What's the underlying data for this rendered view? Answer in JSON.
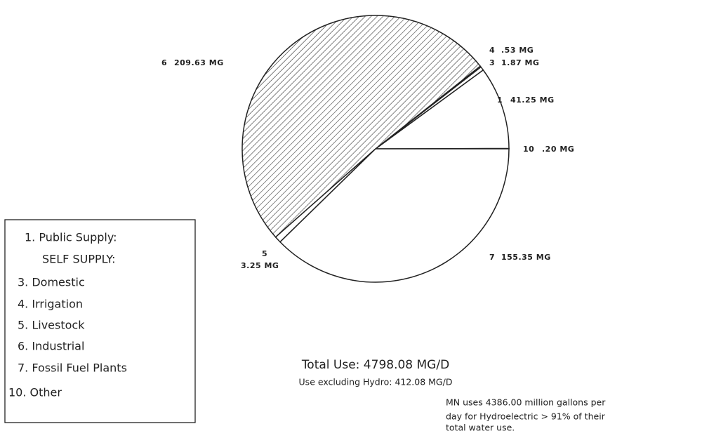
{
  "chart_data": {
    "type": "pie",
    "categories": [
      "10",
      "1",
      "3",
      "4",
      "6",
      "5",
      "7"
    ],
    "values": [
      0.2,
      41.25,
      1.87,
      0.53,
      209.63,
      3.25,
      155.35
    ],
    "value_labels": [
      ".20 MG",
      "41.25 MG",
      "1.87 MG",
      ".53 MG",
      "209.63 MG",
      "3.25 MG",
      "155.35 MG"
    ],
    "color": "#ffffff",
    "hatched": [
      false,
      false,
      false,
      false,
      true,
      false,
      false
    ],
    "legend_items": [
      "1. Public Supply:",
      "SELF SUPPLY:",
      "3. Domestic",
      "4. Irrigation",
      "5. Livestock",
      "6. Industrial",
      "7. Fossil Fuel Plants",
      "10. Other"
    ],
    "total": "Total Use: 4798.08 MG/D",
    "subtotal": "Use excluding Hydro: 412.08 MG/D",
    "note": [
      "MN uses 4386.00 million gallons per",
      "day for Hydroelectric > 91% of their",
      "total water use."
    ]
  }
}
